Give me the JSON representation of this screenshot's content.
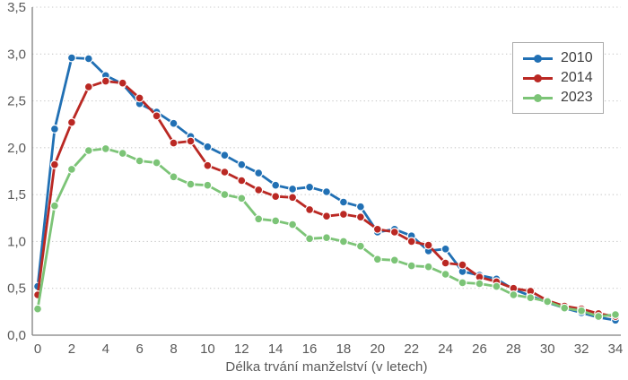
{
  "chart_data": {
    "type": "line",
    "title": "",
    "xlabel": "Délka trvání manželství (v letech)",
    "ylabel": "",
    "ylim": [
      0,
      3.5
    ],
    "y_tick_step": 0.5,
    "y_tick_labels": [
      "0,0",
      "0,5",
      "1,0",
      "1,5",
      "2,0",
      "2,5",
      "3,0",
      "3,5"
    ],
    "x_tick_labels": [
      "0",
      "2",
      "4",
      "6",
      "8",
      "10",
      "12",
      "14",
      "16",
      "18",
      "20",
      "22",
      "24",
      "26",
      "28",
      "30",
      "32",
      "34"
    ],
    "x": [
      0,
      1,
      2,
      3,
      4,
      5,
      6,
      7,
      8,
      9,
      10,
      11,
      12,
      13,
      14,
      15,
      16,
      17,
      18,
      19,
      20,
      21,
      22,
      23,
      24,
      25,
      26,
      27,
      28,
      29,
      30,
      31,
      32,
      33,
      34
    ],
    "grid": "horizontal-dotted",
    "legend_position": "top-right",
    "marker": "circle",
    "series": [
      {
        "name": "2010",
        "color": "#2170B4",
        "values": [
          0.52,
          2.2,
          2.96,
          2.95,
          2.77,
          2.68,
          2.47,
          2.38,
          2.26,
          2.12,
          2.01,
          1.92,
          1.82,
          1.73,
          1.6,
          1.56,
          1.58,
          1.53,
          1.42,
          1.37,
          1.1,
          1.13,
          1.06,
          0.9,
          0.92,
          0.68,
          0.64,
          0.6,
          0.49,
          0.42,
          0.35,
          0.29,
          0.24,
          0.19,
          0.16
        ]
      },
      {
        "name": "2014",
        "color": "#BA2823",
        "values": [
          0.43,
          1.82,
          2.27,
          2.65,
          2.71,
          2.69,
          2.53,
          2.34,
          2.05,
          2.07,
          1.81,
          1.74,
          1.65,
          1.55,
          1.48,
          1.47,
          1.34,
          1.27,
          1.29,
          1.26,
          1.13,
          1.1,
          1.0,
          0.96,
          0.77,
          0.75,
          0.62,
          0.57,
          0.5,
          0.47,
          0.37,
          0.31,
          0.28,
          0.23,
          0.2
        ]
      },
      {
        "name": "2023",
        "color": "#7CC477",
        "values": [
          0.28,
          1.38,
          1.77,
          1.97,
          1.99,
          1.94,
          1.86,
          1.84,
          1.69,
          1.61,
          1.6,
          1.5,
          1.46,
          1.24,
          1.22,
          1.18,
          1.03,
          1.04,
          1.0,
          0.95,
          0.81,
          0.8,
          0.74,
          0.73,
          0.65,
          0.56,
          0.55,
          0.52,
          0.43,
          0.4,
          0.36,
          0.29,
          0.26,
          0.2,
          0.22
        ]
      }
    ]
  },
  "styles": {
    "background": "#FFFFFF",
    "axis_color": "#7F7F7F",
    "grid_color": "#C9C9C9",
    "tick_label_color": "#595959",
    "legend_border_color": "#ABABAB",
    "legend_text_color": "#3F3F3F",
    "marker_outline": "#FFFFFF"
  }
}
